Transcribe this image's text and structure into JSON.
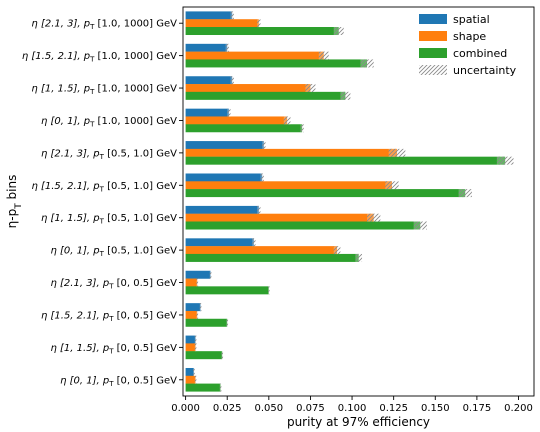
{
  "chart_data": {
    "type": "bar",
    "orientation": "horizontal",
    "title": "",
    "xlabel": "purity at 97% efficiency",
    "ylabel": "η-p_T bins",
    "xlim": [
      0,
      0.205
    ],
    "xticks": [
      0.0,
      0.025,
      0.05,
      0.075,
      0.1,
      0.125,
      0.15,
      0.175,
      0.2
    ],
    "xtick_labels": [
      "0.000",
      "0.025",
      "0.050",
      "0.075",
      "0.100",
      "0.125",
      "0.150",
      "0.175",
      "0.200"
    ],
    "grid": false,
    "legend_position": "top-right",
    "categories": [
      {
        "eta": "η [2.1, 3], ",
        "pt": "p",
        "sub": "T",
        "rest": " [1.0, 1000] GeV"
      },
      {
        "eta": "η [1.5, 2.1], ",
        "pt": "p",
        "sub": "T",
        "rest": " [1.0, 1000] GeV"
      },
      {
        "eta": "η [1, 1.5], ",
        "pt": "p",
        "sub": "T",
        "rest": " [1.0, 1000] GeV"
      },
      {
        "eta": "η [0, 1], ",
        "pt": "p",
        "sub": "T",
        "rest": " [1.0, 1000] GeV"
      },
      {
        "eta": "η [2.1, 3], ",
        "pt": "p",
        "sub": "T",
        "rest": " [0.5, 1.0] GeV"
      },
      {
        "eta": "η [1.5, 2.1], ",
        "pt": "p",
        "sub": "T",
        "rest": " [0.5, 1.0] GeV"
      },
      {
        "eta": "η [1, 1.5], ",
        "pt": "p",
        "sub": "T",
        "rest": " [0.5, 1.0] GeV"
      },
      {
        "eta": "η [0, 1], ",
        "pt": "p",
        "sub": "T",
        "rest": " [0.5, 1.0] GeV"
      },
      {
        "eta": "η [2.1, 3], ",
        "pt": "p",
        "sub": "T",
        "rest": " [0, 0.5] GeV"
      },
      {
        "eta": "η [1.5, 2.1], ",
        "pt": "p",
        "sub": "T",
        "rest": " [0, 0.5] GeV"
      },
      {
        "eta": "η [1, 1.5], ",
        "pt": "p",
        "sub": "T",
        "rest": " [0, 0.5] GeV"
      },
      {
        "eta": "η [0, 1], ",
        "pt": "p",
        "sub": "T",
        "rest": " [0, 0.5] GeV"
      }
    ],
    "series": [
      {
        "name": "spatial",
        "color": "#1f77b4",
        "values": [
          0.028,
          0.025,
          0.028,
          0.026,
          0.047,
          0.046,
          0.044,
          0.041,
          0.015,
          0.009,
          0.006,
          0.005
        ],
        "errors": [
          0.001,
          0.001,
          0.001,
          0.001,
          0.001,
          0.001,
          0.001,
          0.001,
          0.0005,
          0.0005,
          0.0005,
          0.0005
        ]
      },
      {
        "name": "shape",
        "color": "#ff7f0e",
        "values": [
          0.044,
          0.083,
          0.075,
          0.061,
          0.127,
          0.124,
          0.113,
          0.091,
          0.007,
          0.007,
          0.006,
          0.006
        ],
        "errors": [
          0.001,
          0.003,
          0.003,
          0.002,
          0.005,
          0.004,
          0.004,
          0.002,
          0.0005,
          0.0005,
          0.0005,
          0.0005
        ]
      },
      {
        "name": "combined",
        "color": "#2ca02c",
        "values": [
          0.092,
          0.109,
          0.096,
          0.07,
          0.192,
          0.168,
          0.141,
          0.104,
          0.05,
          0.025,
          0.022,
          0.021
        ],
        "errors": [
          0.003,
          0.004,
          0.003,
          0.001,
          0.005,
          0.004,
          0.004,
          0.002,
          0.0005,
          0.0005,
          0.0005,
          0.0005
        ]
      }
    ],
    "uncertainty_label": "uncertainty"
  }
}
